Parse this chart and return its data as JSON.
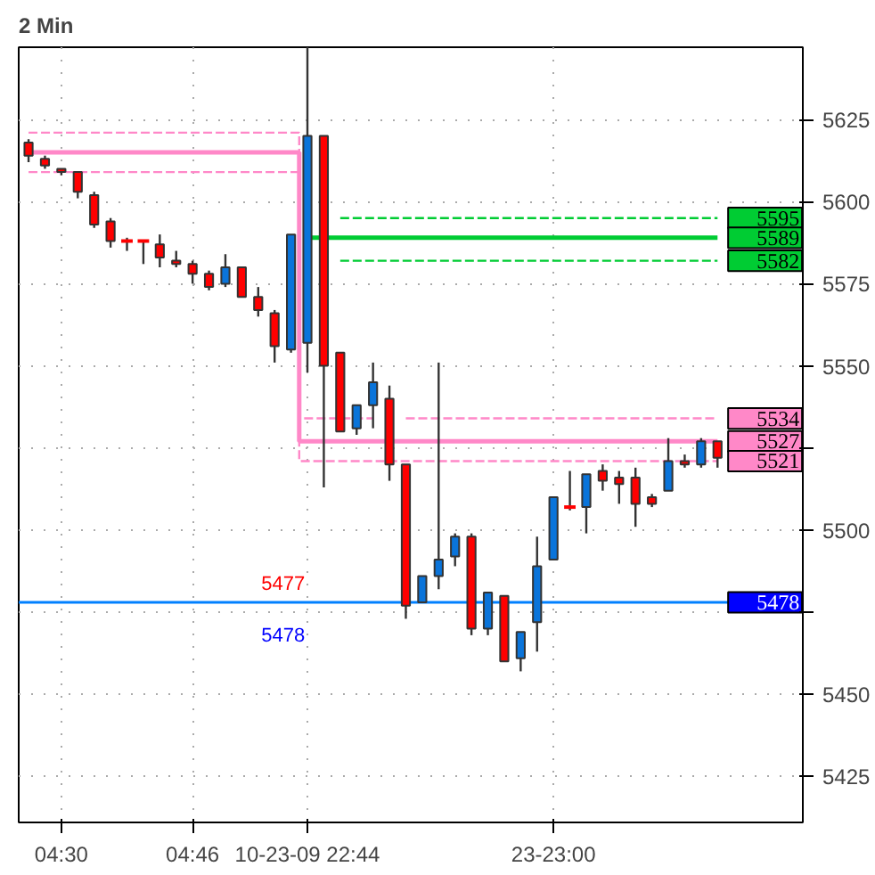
{
  "chart_data": {
    "type": "candlestick",
    "title": "2 Min",
    "categories": [
      null,
      null,
      "04:30",
      null,
      null,
      null,
      null,
      null,
      null,
      null,
      "04:46",
      null,
      null,
      null,
      null,
      null,
      null,
      "10-23-09 22:44",
      null,
      null,
      null,
      null,
      null,
      null,
      null,
      null,
      null,
      null,
      null,
      null,
      null,
      null,
      "23-23:00",
      null,
      null,
      null,
      null,
      null,
      null,
      null,
      null,
      null,
      null
    ],
    "ohlc": [
      [
        5618,
        5619,
        5612,
        5614
      ],
      [
        5613,
        5614,
        5610,
        5611
      ],
      [
        5610,
        5610,
        5608,
        5609
      ],
      [
        5609,
        5609,
        5601,
        5603
      ],
      [
        5602,
        5603,
        5592,
        5593
      ],
      [
        5594,
        5595,
        5586,
        5588
      ],
      [
        5588,
        5589,
        5585,
        5588
      ],
      [
        5588,
        5588,
        5581,
        5588
      ],
      [
        5587,
        5590,
        5580,
        5583
      ],
      [
        5582,
        5585,
        5580,
        5581
      ],
      [
        5581,
        5582,
        5575,
        5578
      ],
      [
        5578,
        5579,
        5573,
        5574
      ],
      [
        5575,
        5584,
        5574,
        5580
      ],
      [
        5580,
        5580,
        5571,
        5571
      ],
      [
        5571,
        5574,
        5565,
        5567
      ],
      [
        5566,
        5567,
        5551,
        5556
      ],
      [
        5555,
        5590,
        5554,
        5590
      ],
      [
        5557,
        5647,
        5548,
        5620
      ],
      [
        5620,
        5620,
        5513,
        5550
      ],
      [
        5554,
        5554,
        5530,
        5530
      ],
      [
        5531,
        5538,
        5529,
        5538
      ],
      [
        5538,
        5551,
        5531,
        5545
      ],
      [
        5540,
        5544,
        5515,
        5520
      ],
      [
        5520,
        5520,
        5473,
        5477
      ],
      [
        5478,
        5486,
        5478,
        5486
      ],
      [
        5486,
        5551,
        5482,
        5491
      ],
      [
        5492,
        5499,
        5489,
        5498
      ],
      [
        5498,
        5499,
        5468,
        5470
      ],
      [
        5470,
        5481,
        5468,
        5481
      ],
      [
        5480,
        5480,
        5460,
        5460
      ],
      [
        5461,
        5469,
        5457,
        5469
      ],
      [
        5472,
        5498,
        5463,
        5489
      ],
      [
        5491,
        5510,
        5491,
        5510
      ],
      [
        5507,
        5518,
        5506,
        5507
      ],
      [
        5507,
        5517,
        5499,
        5517
      ],
      [
        5518,
        5520,
        5512,
        5515
      ],
      [
        5516,
        5518,
        5508,
        5514
      ],
      [
        5516,
        5519,
        5501,
        5508
      ],
      [
        5510,
        5511,
        5507,
        5508
      ],
      [
        5512,
        5528,
        5512,
        5521
      ],
      [
        5521,
        5523,
        5519,
        5520
      ],
      [
        5520,
        5528,
        5519,
        5527
      ],
      [
        5527,
        5527,
        5519,
        5522
      ]
    ],
    "colors": [
      "#ff0000",
      "#ff0000",
      "#ff0000",
      "#ff0000",
      "#ff0000",
      "#ff0000",
      "#ff0000",
      "#ff0000",
      "#ff0000",
      "#ff0000",
      "#ff0000",
      "#ff0000",
      "#0a74da",
      "#ff0000",
      "#ff0000",
      "#ff0000",
      "#0a74da",
      "#0a74da",
      "#ff0000",
      "#ff0000",
      "#0a74da",
      "#0a74da",
      "#ff0000",
      "#ff0000",
      "#0a74da",
      "#0a74da",
      "#0a74da",
      "#ff0000",
      "#0a74da",
      "#ff0000",
      "#0a74da",
      "#0a74da",
      "#0a74da",
      "#ff0000",
      "#0a74da",
      "#ff0000",
      "#ff0000",
      "#ff0000",
      "#ff0000",
      "#0a74da",
      "#ff0000",
      "#0a74da",
      "#ff0000"
    ],
    "series": [
      {
        "type": "step",
        "line_style": "dashed",
        "color": "#ff88c8",
        "values": [
          5621,
          5621,
          5621,
          5621,
          5621,
          5621,
          5621,
          5621,
          5621,
          5621,
          5621,
          5621,
          5621,
          5621,
          5621,
          5621,
          5621,
          5534,
          5534,
          5534,
          5534,
          5534,
          null,
          5534,
          5534,
          5534,
          5534,
          5534,
          5534,
          5534,
          5534,
          5534,
          5534,
          5534,
          5534,
          5534,
          5534,
          5534,
          5534,
          5534,
          5534,
          5534,
          5534
        ],
        "value_labels": [
          null,
          null,
          null,
          null,
          null,
          null,
          null,
          null,
          null,
          null,
          null,
          null,
          null,
          null,
          null,
          null,
          null,
          null,
          null,
          null,
          null,
          null,
          null,
          null,
          null,
          null,
          null,
          null,
          null,
          null,
          null,
          null,
          null,
          null,
          null,
          null,
          null,
          null,
          null,
          null,
          null,
          null,
          "5534"
        ]
      },
      {
        "type": "step",
        "line_style": "solid",
        "color": "#ff88c8",
        "values": [
          5615,
          5615,
          5615,
          5615,
          5615,
          5615,
          5615,
          5615,
          5615,
          5615,
          5615,
          5615,
          5615,
          5615,
          5615,
          5615,
          5615,
          5527,
          5527,
          5527,
          5527,
          5527,
          5527,
          5527,
          5527,
          5527,
          5527,
          5527,
          5527,
          5527,
          5527,
          5527,
          5527,
          5527,
          5527,
          5527,
          5527,
          5527,
          5527,
          5527,
          5527,
          5527,
          5527
        ],
        "value_labels": [
          null,
          null,
          null,
          null,
          null,
          null,
          null,
          null,
          null,
          null,
          null,
          null,
          null,
          null,
          null,
          null,
          null,
          null,
          null,
          null,
          null,
          null,
          null,
          null,
          null,
          null,
          null,
          null,
          null,
          null,
          null,
          null,
          null,
          null,
          null,
          null,
          null,
          null,
          null,
          null,
          null,
          null,
          "5527"
        ]
      },
      {
        "type": "step",
        "line_style": "dashed",
        "color": "#ff88c8",
        "values": [
          5609,
          5609,
          5609,
          5609,
          5609,
          5609,
          5609,
          5609,
          5609,
          5609,
          5609,
          5609,
          5609,
          5609,
          5609,
          5609,
          5609,
          5521,
          5521,
          5521,
          5521,
          5521,
          5521,
          5521,
          5521,
          5521,
          5521,
          5521,
          5521,
          5521,
          5521,
          5521,
          5521,
          5521,
          5521,
          5521,
          5521,
          5521,
          5521,
          5521,
          5521,
          5521,
          5521
        ],
        "value_labels": [
          null,
          null,
          null,
          null,
          null,
          null,
          null,
          null,
          null,
          null,
          null,
          null,
          null,
          null,
          null,
          null,
          null,
          null,
          null,
          null,
          null,
          null,
          null,
          null,
          null,
          null,
          null,
          null,
          null,
          null,
          null,
          null,
          null,
          null,
          null,
          null,
          null,
          null,
          null,
          null,
          null,
          null,
          "5521"
        ]
      },
      {
        "type": "step",
        "line_style": "dashed",
        "color": "#00cc33",
        "values": [
          null,
          null,
          null,
          null,
          null,
          null,
          null,
          null,
          null,
          null,
          null,
          null,
          null,
          null,
          null,
          null,
          null,
          null,
          null,
          5595,
          5595,
          5595,
          5595,
          5595,
          5595,
          5595,
          5595,
          5595,
          5595,
          5595,
          5595,
          5595,
          5595,
          5595,
          5595,
          5595,
          5595,
          5595,
          5595,
          5595,
          5595,
          5595,
          5595
        ],
        "value_labels": [
          null,
          null,
          null,
          null,
          null,
          null,
          null,
          null,
          null,
          null,
          null,
          null,
          null,
          null,
          null,
          null,
          null,
          null,
          null,
          null,
          null,
          null,
          null,
          null,
          null,
          null,
          null,
          null,
          null,
          null,
          null,
          null,
          null,
          null,
          null,
          null,
          null,
          null,
          null,
          null,
          null,
          null,
          "5595"
        ]
      },
      {
        "type": "step",
        "line_style": "solid",
        "color": "#00cc33",
        "values": [
          null,
          null,
          null,
          null,
          null,
          null,
          null,
          null,
          null,
          null,
          null,
          null,
          null,
          null,
          null,
          null,
          null,
          5589,
          5589,
          5589,
          5589,
          5589,
          5589,
          5589,
          5589,
          5589,
          5589,
          5589,
          5589,
          5589,
          5589,
          5589,
          5589,
          5589,
          5589,
          5589,
          5589,
          5589,
          5589,
          5589,
          5589,
          5589,
          5589
        ],
        "value_labels": [
          null,
          null,
          null,
          null,
          null,
          null,
          null,
          null,
          null,
          null,
          null,
          null,
          null,
          null,
          null,
          null,
          null,
          null,
          null,
          null,
          null,
          null,
          null,
          null,
          null,
          null,
          null,
          null,
          null,
          null,
          null,
          null,
          null,
          null,
          null,
          null,
          null,
          null,
          null,
          null,
          null,
          null,
          "5589"
        ]
      },
      {
        "type": "step",
        "line_style": "dashed",
        "color": "#00cc33",
        "values": [
          null,
          null,
          null,
          null,
          null,
          null,
          null,
          null,
          null,
          null,
          null,
          null,
          null,
          null,
          null,
          null,
          null,
          null,
          null,
          5582,
          5582,
          5582,
          5582,
          5582,
          5582,
          5582,
          5582,
          5582,
          5582,
          5582,
          5582,
          5582,
          5582,
          5582,
          5582,
          5582,
          5582,
          5582,
          5582,
          5582,
          5582,
          5582,
          5582
        ],
        "value_labels": [
          null,
          null,
          null,
          null,
          null,
          null,
          null,
          null,
          null,
          null,
          null,
          null,
          null,
          null,
          null,
          null,
          null,
          null,
          null,
          null,
          null,
          null,
          null,
          null,
          null,
          null,
          null,
          null,
          null,
          null,
          null,
          null,
          null,
          null,
          null,
          null,
          null,
          null,
          null,
          null,
          null,
          null,
          "5582"
        ]
      }
    ],
    "ref_lines": [
      {
        "axis": "y",
        "value": 5478,
        "label": "5478",
        "color": "#0080ff"
      }
    ],
    "annotations": [
      {
        "text": "5477",
        "y": 5477
      },
      {
        "text": "5478",
        "y": 5478
      }
    ],
    "ylim": [
      5411,
      5647
    ],
    "yticks": [
      5425,
      5450,
      {
        "value": 5475,
        "label": null
      },
      5500,
      {
        "value": 5525,
        "label": null
      },
      5550,
      5575,
      5600,
      5625
    ],
    "grid": true
  }
}
